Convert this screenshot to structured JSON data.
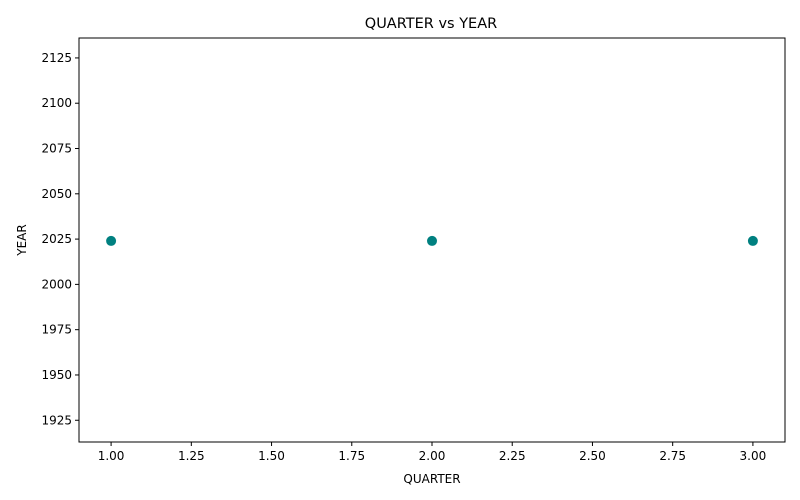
{
  "chart_data": {
    "type": "scatter",
    "title": "QUARTER vs YEAR",
    "xlabel": "QUARTER",
    "ylabel": "YEAR",
    "xlim": [
      0.9,
      3.1
    ],
    "ylim": [
      1913,
      2136
    ],
    "xticks": [
      1.0,
      1.25,
      1.5,
      1.75,
      2.0,
      2.25,
      2.5,
      2.75,
      3.0
    ],
    "xtick_labels": [
      "1.00",
      "1.25",
      "1.50",
      "1.75",
      "2.00",
      "2.25",
      "2.50",
      "2.75",
      "3.00"
    ],
    "yticks": [
      1925,
      1950,
      1975,
      2000,
      2025,
      2050,
      2075,
      2100,
      2125
    ],
    "ytick_labels": [
      "1925",
      "1950",
      "1975",
      "2000",
      "2025",
      "2050",
      "2075",
      "2100",
      "2125"
    ],
    "grid": false,
    "legend": "none",
    "points": [
      {
        "x": 1,
        "y": 2024
      },
      {
        "x": 2,
        "y": 2024
      },
      {
        "x": 3,
        "y": 2024
      }
    ],
    "marker_color": "#008080"
  }
}
